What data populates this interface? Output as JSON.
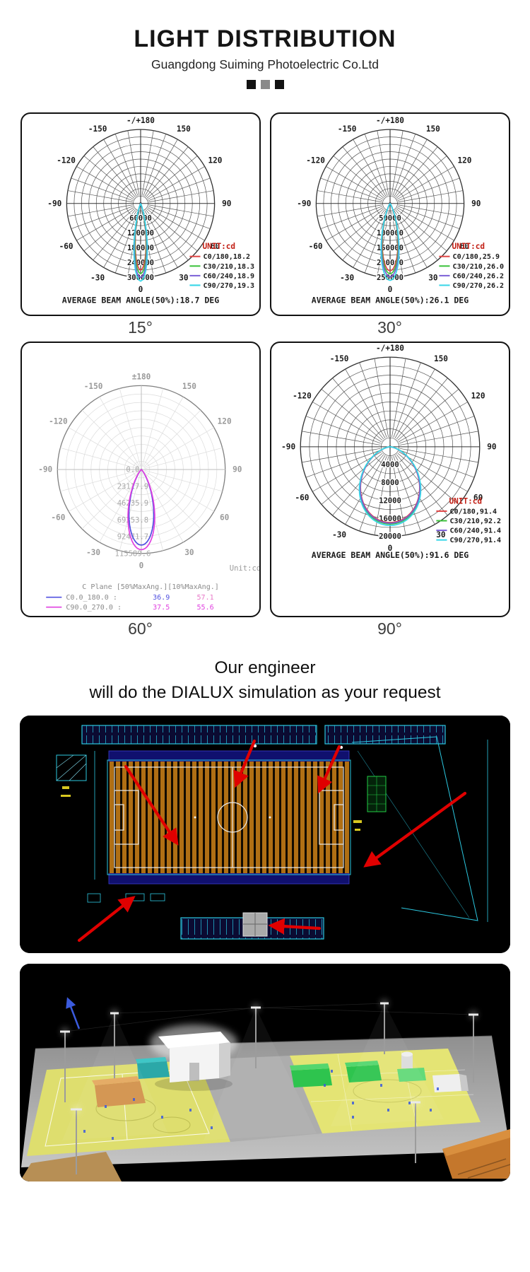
{
  "header": {
    "title": "LIGHT DISTRIBUTION",
    "subtitle": "Guangdong Suiming Photoelectric Co.Ltd"
  },
  "engineer_note": {
    "line1": "Our engineer",
    "line2": "will do the DIALUX simulation as your request"
  },
  "palette": {
    "arrow_red": "#e00000",
    "cad_cyan": "#2cc8e0",
    "cad_navy": "#10106e",
    "field_orange": "#b06f14",
    "court_yellow": "#dede6e",
    "sim_green": "#2ec44e"
  },
  "chart_data": [
    {
      "type": "polar_photometric",
      "label": "15°",
      "style": "dark",
      "top_angle_label": "-/+180",
      "angle_labels": [
        "-150",
        "150",
        "-120",
        "120",
        "-90",
        "90",
        "-60",
        "60",
        "-30",
        "30",
        "0"
      ],
      "ring_labels": [
        "60000",
        "120000",
        "180000",
        "240000",
        "300000"
      ],
      "unit_label": "UNIT:cd",
      "series": [
        {
          "name": "C0/180,18.2",
          "color": "#e04545",
          "beam_deg": 18.2,
          "peak": 0.9
        },
        {
          "name": "C30/210,18.3",
          "color": "#3cc23c",
          "beam_deg": 18.3,
          "peak": 0.95
        },
        {
          "name": "C60/240,18.9",
          "color": "#7a5fd6",
          "beam_deg": 18.9,
          "peak": 1.0
        },
        {
          "name": "C90/270,19.3",
          "color": "#38d6e8",
          "beam_deg": 19.3,
          "peak": 1.05
        }
      ],
      "average_label": "AVERAGE BEAM ANGLE(50%):18.7 DEG"
    },
    {
      "type": "polar_photometric",
      "label": "30°",
      "style": "dark",
      "top_angle_label": "-/+180",
      "angle_labels": [
        "-150",
        "150",
        "-120",
        "120",
        "-90",
        "90",
        "-60",
        "60",
        "-30",
        "30",
        "0"
      ],
      "ring_labels": [
        "50000",
        "100000",
        "150000",
        "200000",
        "250000"
      ],
      "unit_label": "UNIT:cd",
      "series": [
        {
          "name": "C0/180,25.9",
          "color": "#e04545",
          "beam_deg": 25.9,
          "peak": 0.91
        },
        {
          "name": "C30/210,26.0",
          "color": "#3cc23c",
          "beam_deg": 26.0,
          "peak": 0.95
        },
        {
          "name": "C60/240,26.2",
          "color": "#7a5fd6",
          "beam_deg": 26.2,
          "peak": 0.99
        },
        {
          "name": "C90/270,26.2",
          "color": "#38d6e8",
          "beam_deg": 26.2,
          "peak": 1.04
        }
      ],
      "average_label": "AVERAGE BEAM ANGLE(50%):26.1 DEG"
    },
    {
      "type": "polar_photometric",
      "label": "60°",
      "style": "light",
      "top_angle_label": "±180",
      "angle_labels": [
        "-150",
        "150",
        "-120",
        "120",
        "-90",
        "90",
        "-60",
        "60",
        "-30",
        "30",
        "0"
      ],
      "ring_labels": [
        "0.0",
        "23117.9",
        "46235.9",
        "69353.8",
        "92471.7",
        "115589.6"
      ],
      "unit_label": "Unit:cd",
      "series": [
        {
          "name": "C0.0_180.0",
          "color": "#5050e0",
          "beam_deg": 36.9,
          "peak": 0.9
        },
        {
          "name": "C90.0_270.0",
          "color": "#e040e0",
          "beam_deg": 37.5,
          "peak": 0.955
        }
      ],
      "table": {
        "header": "C Plane  [50%MaxAng.][10%MaxAng.]",
        "rows": [
          {
            "name": "C0.0_180.0 :",
            "v50": "36.9",
            "v10": "57.1",
            "color": "#5050e0",
            "v10_color": "#e878c8"
          },
          {
            "name": "C90.0_270.0 :",
            "v50": "37.5",
            "v10": "55.6",
            "color": "#e040e0",
            "v10_color": "#e040e0"
          }
        ]
      }
    },
    {
      "type": "polar_photometric",
      "label": "90°",
      "style": "dark",
      "top_angle_label": "-/+180",
      "angle_labels": [
        "-150",
        "150",
        "-120",
        "120",
        "-90",
        "90",
        "-60",
        "60",
        "-30",
        "30",
        "0"
      ],
      "ring_labels": [
        "4000",
        "8000",
        "12000",
        "16000",
        "20000"
      ],
      "unit_label": "UNIT:cd",
      "series": [
        {
          "name": "C0/180,91.4",
          "color": "#e04545",
          "beam_deg": 91.4,
          "peak": 0.845
        },
        {
          "name": "C30/210,92.2",
          "color": "#3cc23c",
          "beam_deg": 92.2,
          "peak": 0.862
        },
        {
          "name": "C60/240,91.4",
          "color": "#7a5fd6",
          "beam_deg": 91.4,
          "peak": 0.853
        },
        {
          "name": "C90/270,91.4",
          "color": "#38d6e8",
          "beam_deg": 91.4,
          "peak": 0.878
        }
      ],
      "average_label": "AVERAGE BEAM ANGLE(50%):91.6 DEG"
    }
  ]
}
